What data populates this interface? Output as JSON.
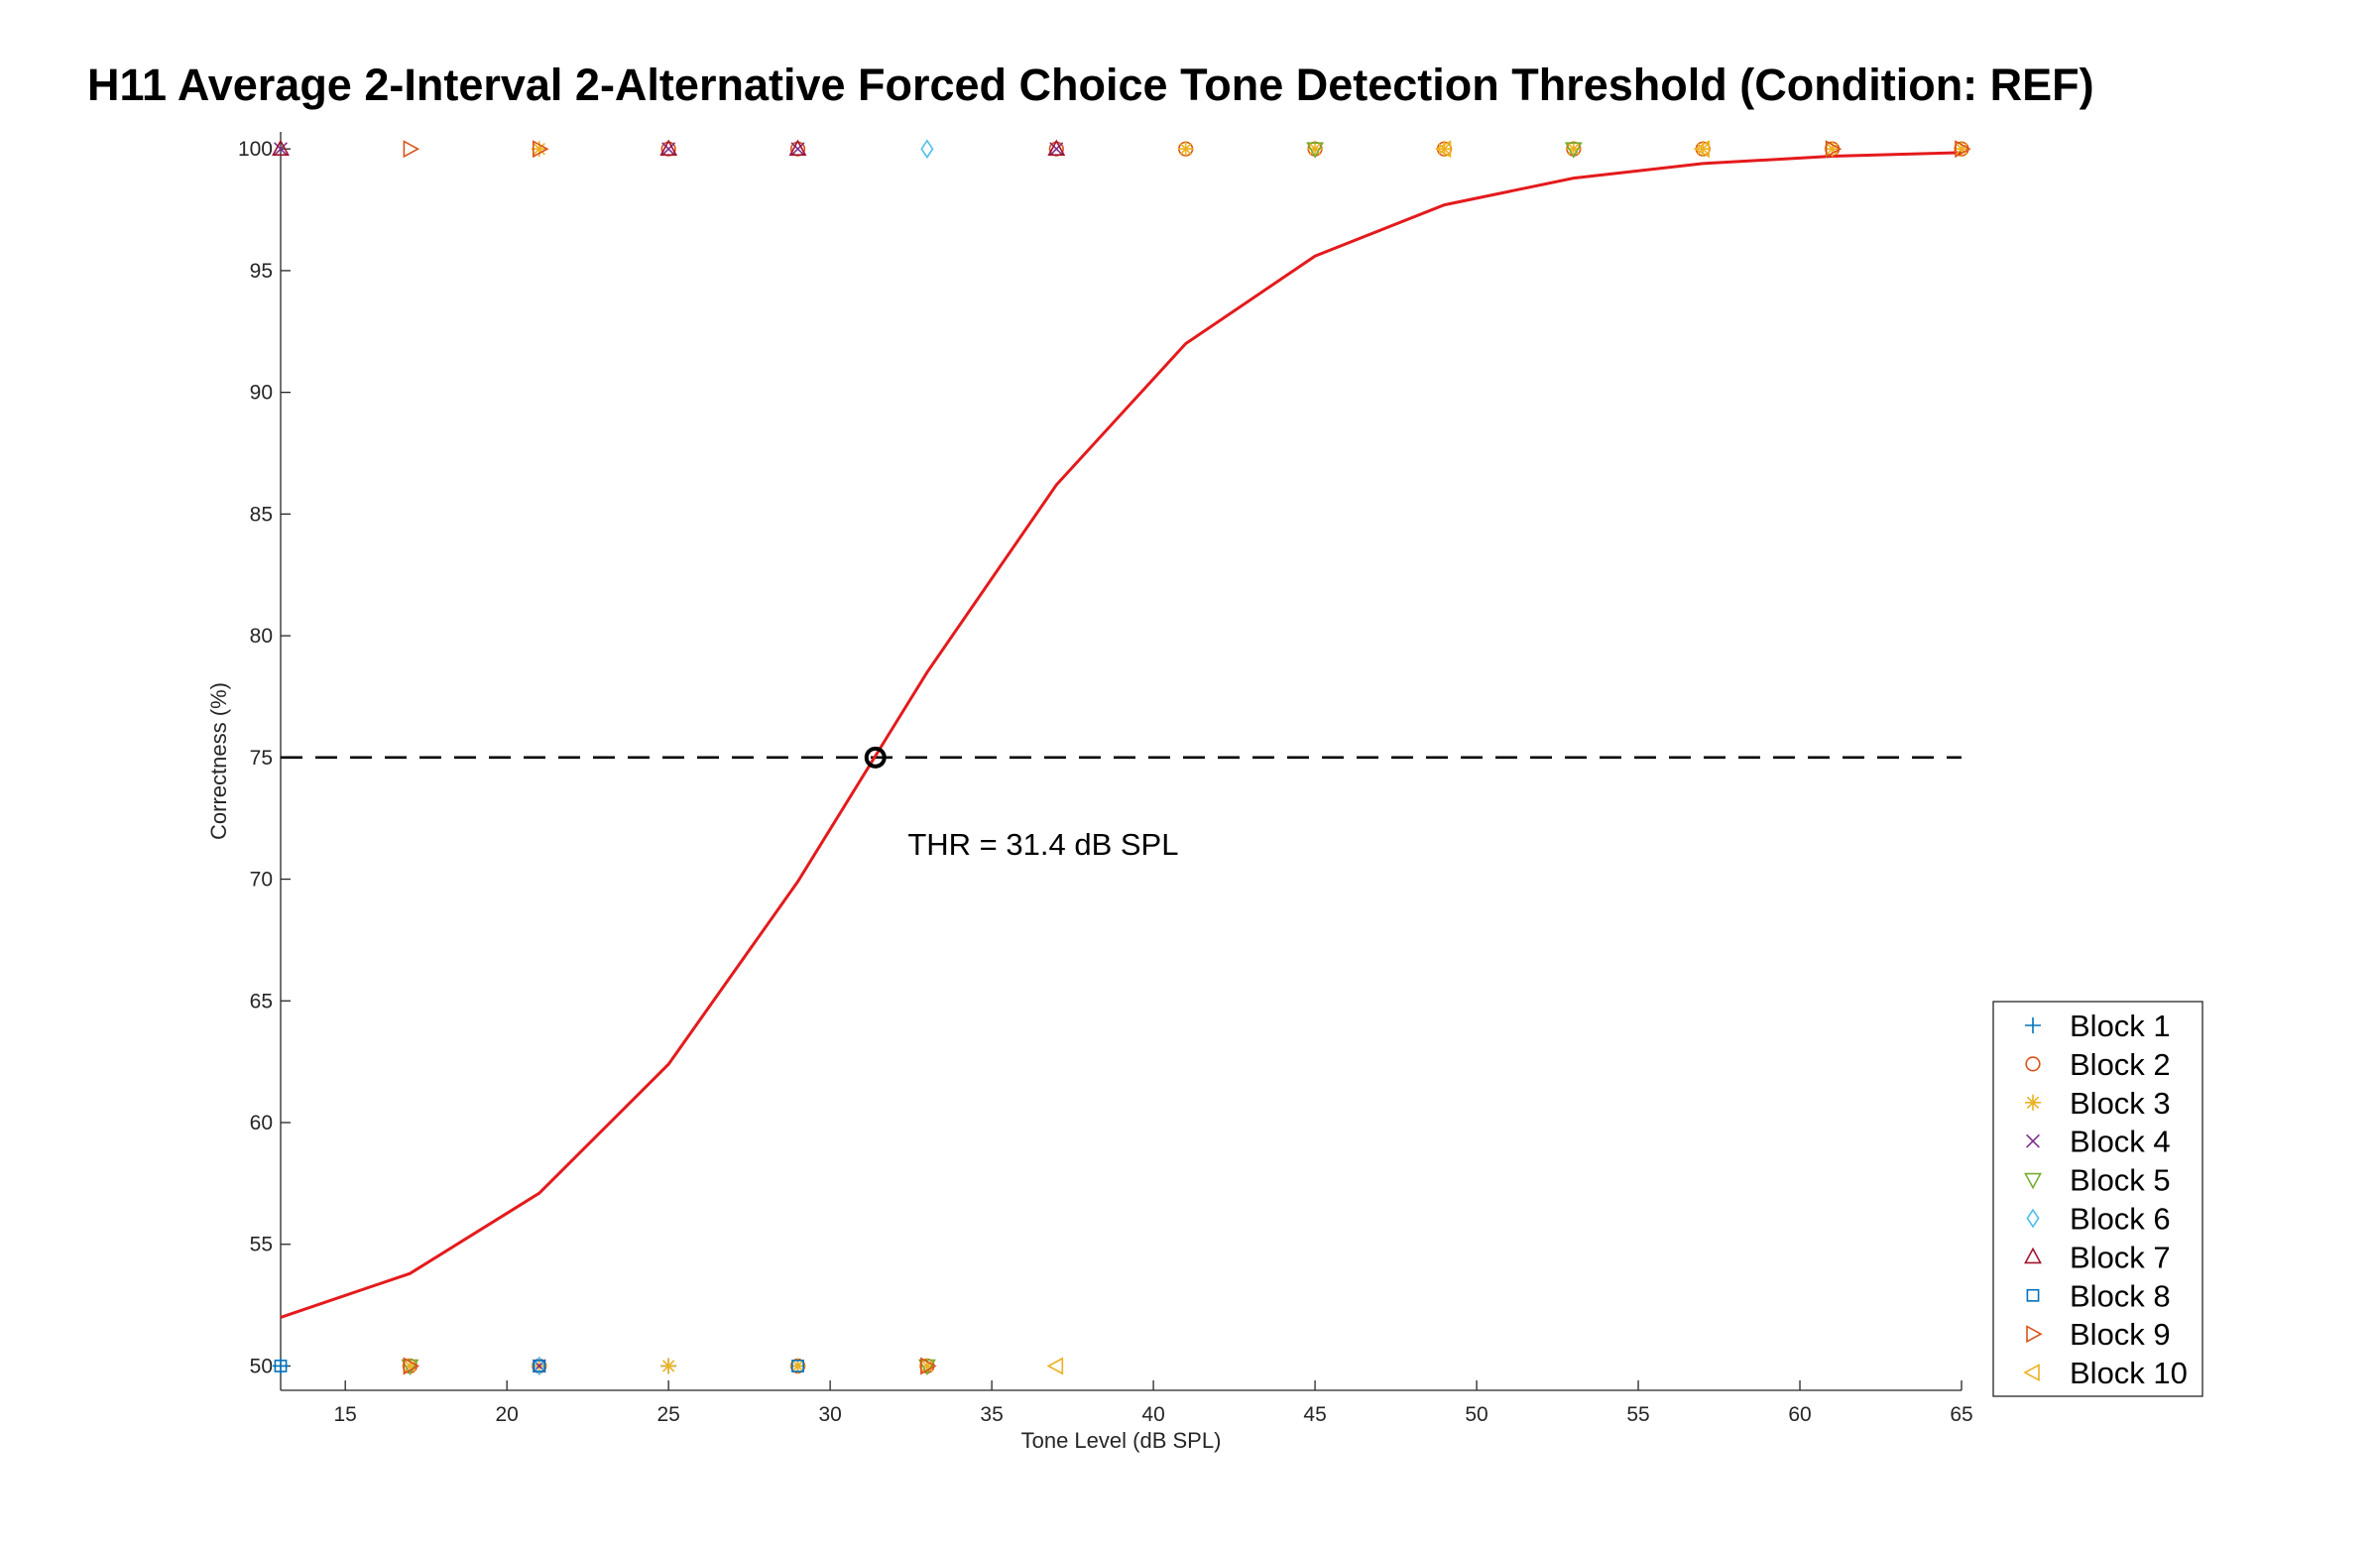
{
  "chart_data": {
    "type": "line",
    "title": "H11 Average 2-Interval 2-Alternative Forced Choice Tone Detection Threshold (Condition: REF)",
    "xlabel": "Tone Level (dB SPL)",
    "ylabel": "Correctness (%)",
    "xlim": [
      13,
      65
    ],
    "ylim": [
      49,
      100.7
    ],
    "xticks": [
      15,
      20,
      25,
      30,
      35,
      40,
      45,
      50,
      55,
      60,
      65
    ],
    "yticks": [
      50,
      55,
      60,
      65,
      70,
      75,
      80,
      85,
      90,
      95,
      100
    ],
    "grid": false,
    "legend_position": "right",
    "fit_curve": {
      "color": "#e41a1c",
      "x": [
        13,
        17,
        21,
        25,
        29,
        33,
        37,
        41,
        45,
        49,
        53,
        57,
        61,
        65
      ],
      "y": [
        52.0,
        53.8,
        57.1,
        62.4,
        69.9,
        78.5,
        86.2,
        92.0,
        95.6,
        97.7,
        98.8,
        99.4,
        99.7,
        99.85
      ]
    },
    "threshold": {
      "level": 75,
      "x": 31.4,
      "label": "THR = 31.4 dB SPL",
      "annotation_x": 32.4,
      "annotation_y": 71.0
    },
    "series": [
      {
        "name": "Block 1",
        "marker": "plus",
        "color": "#0072bd",
        "points": [
          [
            13,
            50
          ],
          [
            25,
            50
          ],
          [
            29,
            50
          ]
        ]
      },
      {
        "name": "Block 2",
        "marker": "circle",
        "color": "#d95319",
        "points": [
          [
            17,
            50
          ],
          [
            21,
            50
          ],
          [
            29,
            50
          ],
          [
            33,
            50
          ],
          [
            25,
            100
          ],
          [
            29,
            100
          ],
          [
            37,
            100
          ],
          [
            41,
            100
          ],
          [
            45,
            100
          ],
          [
            49,
            100
          ],
          [
            53,
            100
          ],
          [
            57,
            100
          ],
          [
            61,
            100
          ],
          [
            65,
            100
          ]
        ]
      },
      {
        "name": "Block 3",
        "marker": "asterisk",
        "color": "#edb120",
        "points": [
          [
            17,
            50
          ],
          [
            21,
            50
          ],
          [
            25,
            50
          ],
          [
            29,
            50
          ],
          [
            33,
            50
          ],
          [
            21,
            100
          ],
          [
            41,
            100
          ],
          [
            45,
            100
          ],
          [
            49,
            100
          ],
          [
            53,
            100
          ],
          [
            57,
            100
          ],
          [
            61,
            100
          ],
          [
            65,
            100
          ]
        ]
      },
      {
        "name": "Block 4",
        "marker": "x",
        "color": "#7e2f8e",
        "points": [
          [
            13,
            100
          ],
          [
            21,
            50
          ],
          [
            25,
            100
          ],
          [
            29,
            100
          ],
          [
            37,
            100
          ]
        ]
      },
      {
        "name": "Block 5",
        "marker": "triangle-down",
        "color": "#77ac30",
        "points": [
          [
            17,
            50
          ],
          [
            33,
            50
          ],
          [
            45,
            100
          ],
          [
            53,
            100
          ]
        ]
      },
      {
        "name": "Block 6",
        "marker": "diamond",
        "color": "#4dbeee",
        "points": [
          [
            33,
            100
          ],
          [
            21,
            50
          ]
        ]
      },
      {
        "name": "Block 7",
        "marker": "triangle-up",
        "color": "#a2142f",
        "points": [
          [
            13,
            100
          ],
          [
            25,
            100
          ],
          [
            29,
            100
          ],
          [
            37,
            100
          ]
        ]
      },
      {
        "name": "Block 8",
        "marker": "square",
        "color": "#0072bd",
        "points": [
          [
            13,
            50
          ],
          [
            21,
            50
          ],
          [
            29,
            50
          ]
        ]
      },
      {
        "name": "Block 9",
        "marker": "triangle-right",
        "color": "#d95319",
        "points": [
          [
            17,
            100
          ],
          [
            21,
            100
          ],
          [
            33,
            50
          ],
          [
            17,
            50
          ],
          [
            61,
            100
          ],
          [
            65,
            100
          ]
        ]
      },
      {
        "name": "Block 10",
        "marker": "triangle-left",
        "color": "#edb120",
        "points": [
          [
            37,
            50
          ],
          [
            49,
            100
          ],
          [
            57,
            100
          ]
        ]
      }
    ]
  }
}
